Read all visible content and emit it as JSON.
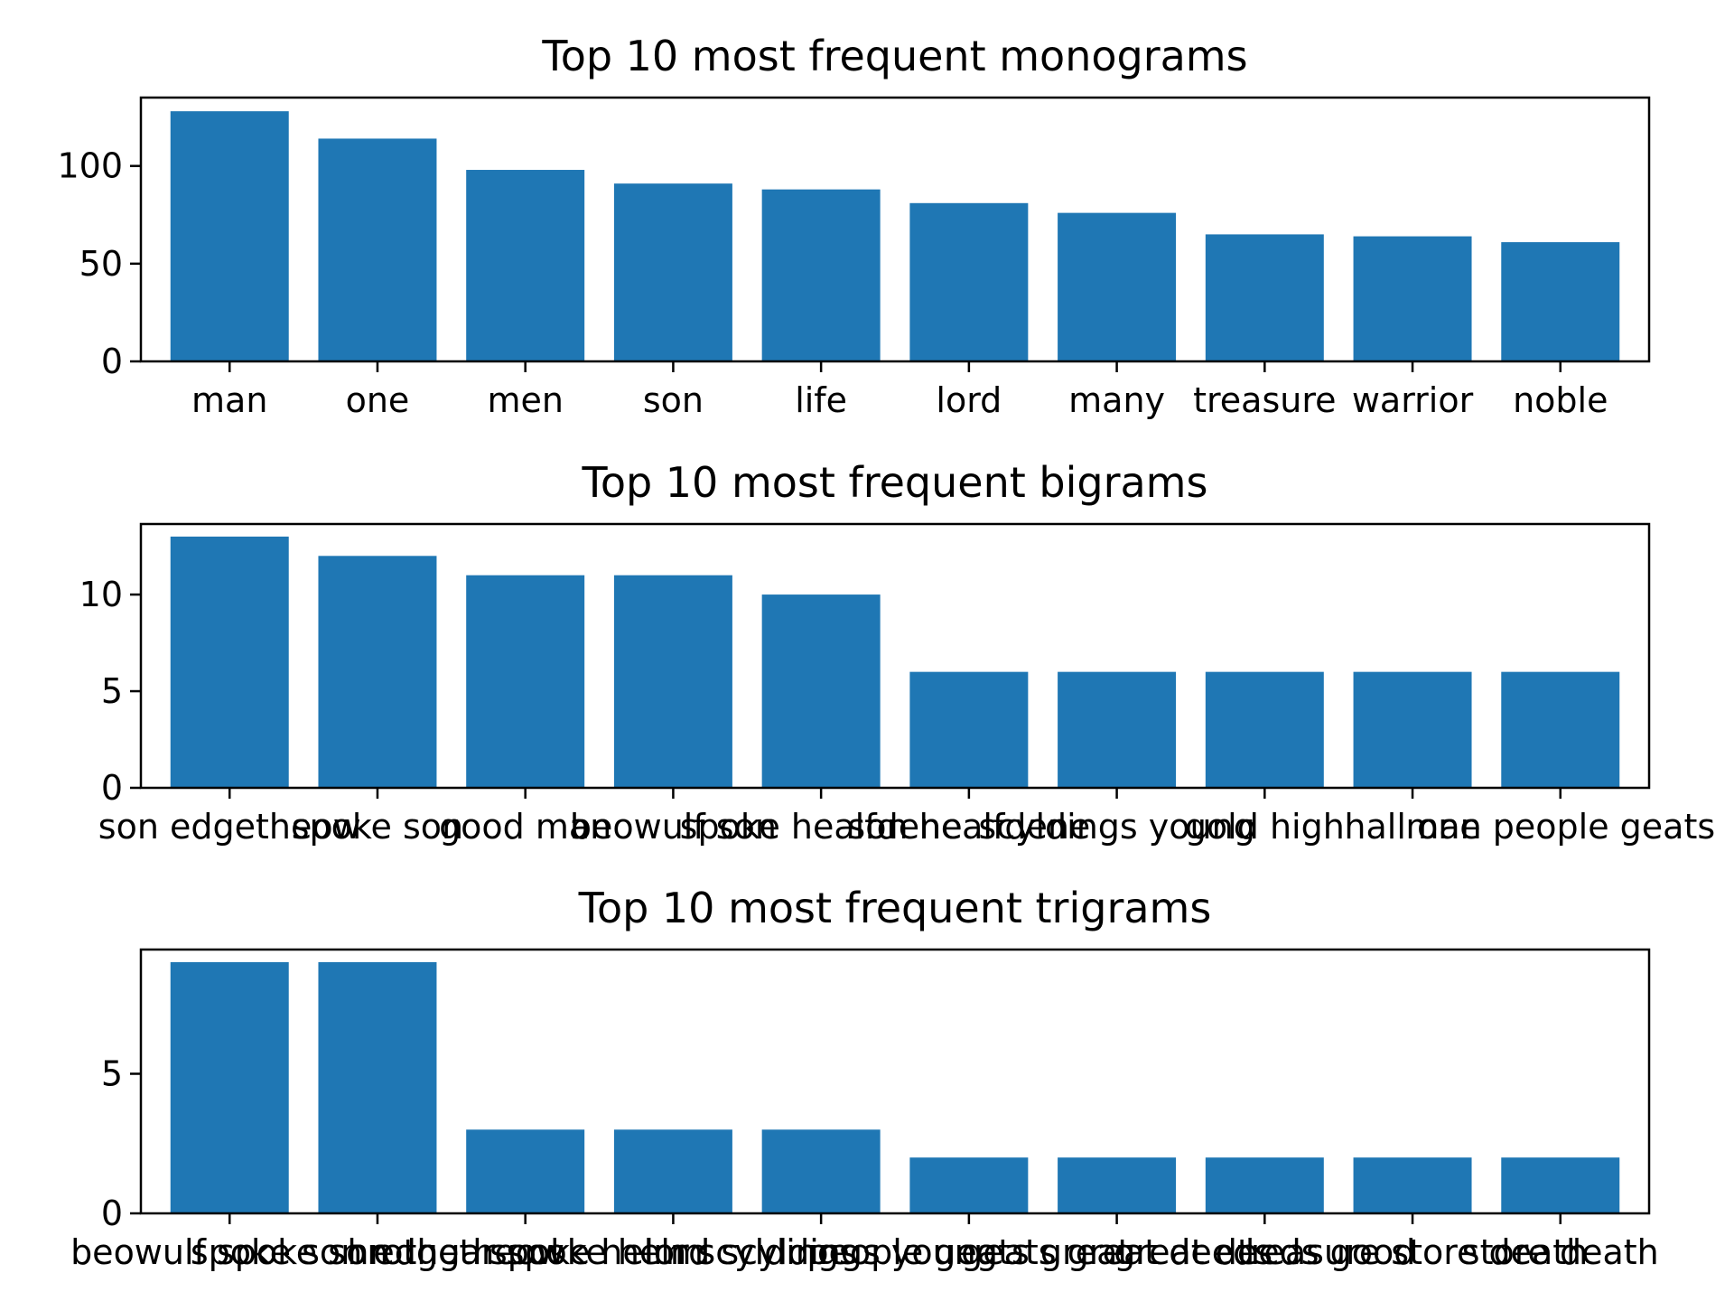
{
  "chart_data": [
    {
      "type": "bar",
      "title": "Top 10 most frequent monograms",
      "xlabel": "",
      "ylabel": "",
      "categories": [
        "man",
        "one",
        "men",
        "son",
        "life",
        "lord",
        "many",
        "treasure",
        "warrior",
        "noble"
      ],
      "values": [
        128,
        114,
        98,
        91,
        88,
        81,
        76,
        65,
        64,
        61
      ],
      "ylim": [
        0,
        135
      ],
      "yticks": [
        0,
        50,
        100
      ],
      "color": "#1f77b4",
      "grid": false
    },
    {
      "type": "bar",
      "title": "Top 10 most frequent bigrams",
      "xlabel": "",
      "ylabel": "",
      "categories": [
        "son edgetheow",
        "spoke son",
        "good man",
        "beowulf son",
        "spoke healfdene",
        "son healfdene",
        "scyldings young",
        "gold high",
        "hall one",
        "man people geats"
      ],
      "values": [
        13,
        12,
        11,
        11,
        10,
        6,
        6,
        6,
        6,
        6
      ],
      "ylim": [
        0,
        13.65
      ],
      "yticks": [
        0,
        5,
        10
      ],
      "color": "#1f77b4",
      "grid": false
    },
    {
      "type": "bar",
      "title": "Top 10 most frequent trigrams",
      "xlabel": "",
      "ylabel": "",
      "categories": [
        "beowulf spoke son",
        "spoke son edgetheow",
        "hrothgar spoke helm",
        "spoke helm scyldings",
        "lord scyldings young",
        "people geats great",
        "geats great deeds",
        "great deeds good",
        "treasure store death",
        "store death"
      ],
      "values": [
        9,
        9,
        3,
        3,
        3,
        2,
        2,
        2,
        2,
        2
      ],
      "ylim": [
        0,
        9.45
      ],
      "yticks": [
        0,
        5
      ],
      "color": "#1f77b4",
      "grid": false
    }
  ]
}
